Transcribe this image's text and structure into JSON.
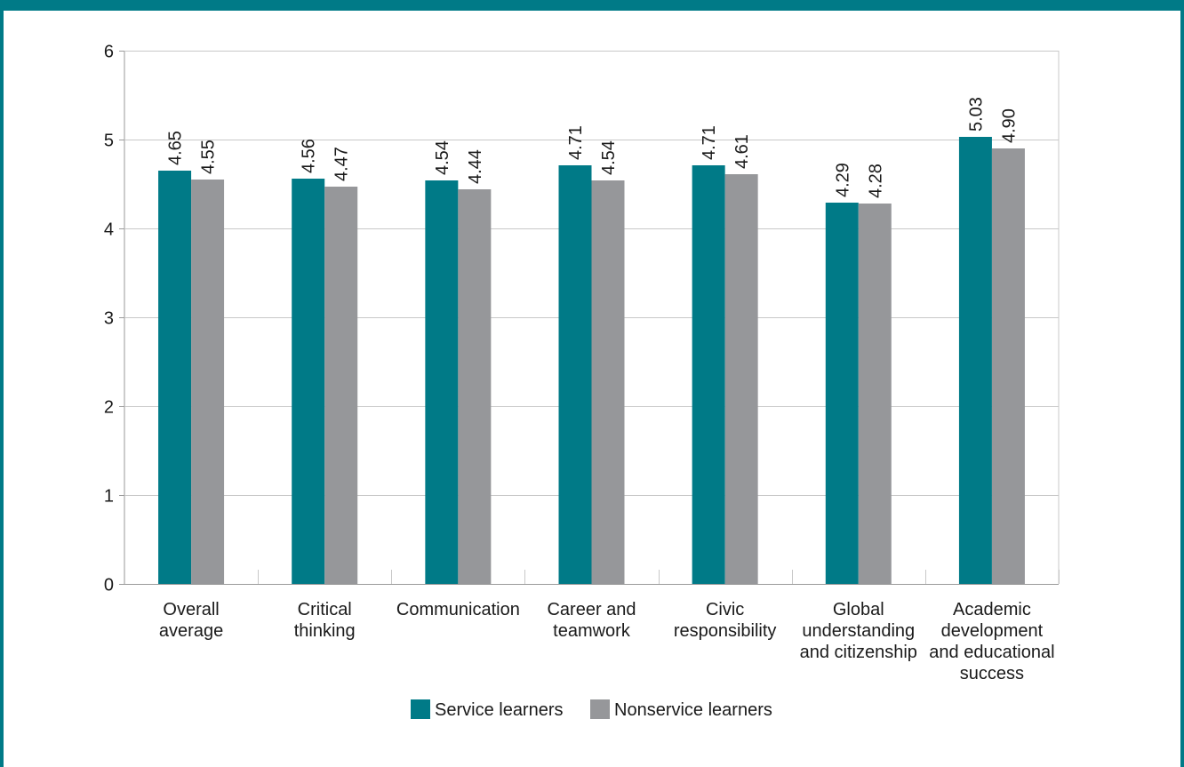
{
  "chart_data": {
    "type": "bar",
    "categories": [
      [
        "Overall",
        "average"
      ],
      [
        "Critical",
        "thinking"
      ],
      [
        "Communication"
      ],
      [
        "Career and",
        "teamwork"
      ],
      [
        "Civic",
        "responsibility"
      ],
      [
        "Global",
        "understanding",
        "and citizenship"
      ],
      [
        "Academic",
        "development",
        "and educational",
        "success"
      ]
    ],
    "series": [
      {
        "name": "Service learners",
        "color": "#007a87",
        "values": [
          4.65,
          4.56,
          4.54,
          4.71,
          4.71,
          4.29,
          5.03
        ],
        "labels": [
          "4.65",
          "4.56",
          "4.54",
          "4.71",
          "4.71",
          "4.29",
          "5.03"
        ]
      },
      {
        "name": "Nonservice learners",
        "color": "#96979a",
        "values": [
          4.55,
          4.47,
          4.44,
          4.54,
          4.61,
          4.28,
          4.9
        ],
        "labels": [
          "4.55",
          "4.47",
          "4.44",
          "4.54",
          "4.61",
          "4.28",
          "4.90"
        ]
      }
    ],
    "ylim": [
      0,
      6
    ],
    "yticks": [
      0,
      1,
      2,
      3,
      4,
      5,
      6
    ],
    "grid": true,
    "legend": "bottom"
  },
  "colors": {
    "frame": "#007a87",
    "grid": "#c8c8c8",
    "axis": "#9a9a9a"
  }
}
